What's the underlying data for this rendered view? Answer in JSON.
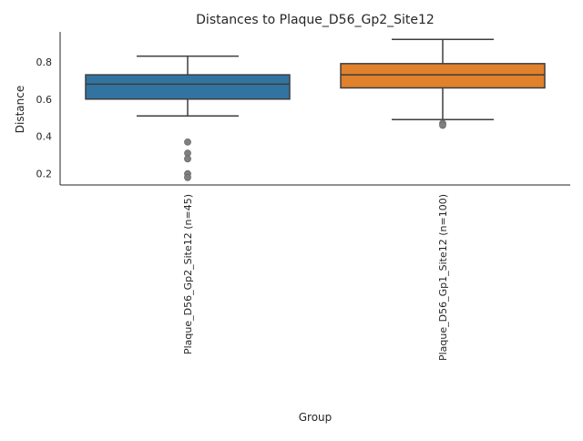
{
  "chart_data": {
    "type": "box",
    "title": "Distances to Plaque_D56_Gp2_Site12",
    "xlabel": "Group",
    "ylabel": "Distance",
    "ylim": [
      0.14,
      0.96
    ],
    "yticks": [
      "0.2",
      "0.4",
      "0.6",
      "0.8"
    ],
    "grid": false,
    "categories": [
      "Plaque_D56_Gp2_Site12 (n=45)",
      "Plaque_D56_Gp1_Site12 (n=100)"
    ],
    "boxes": [
      {
        "category": "Plaque_D56_Gp2_Site12 (n=45)",
        "color": "#3274a1",
        "whisker_low": 0.51,
        "q1": 0.6,
        "median": 0.68,
        "q3": 0.73,
        "whisker_high": 0.83,
        "outliers": [
          0.37,
          0.31,
          0.28,
          0.2,
          0.18
        ]
      },
      {
        "category": "Plaque_D56_Gp1_Site12 (n=100)",
        "color": "#e1812c",
        "whisker_low": 0.49,
        "q1": 0.66,
        "median": 0.73,
        "q3": 0.79,
        "whisker_high": 0.92,
        "outliers": [
          0.47,
          0.46
        ]
      }
    ]
  }
}
